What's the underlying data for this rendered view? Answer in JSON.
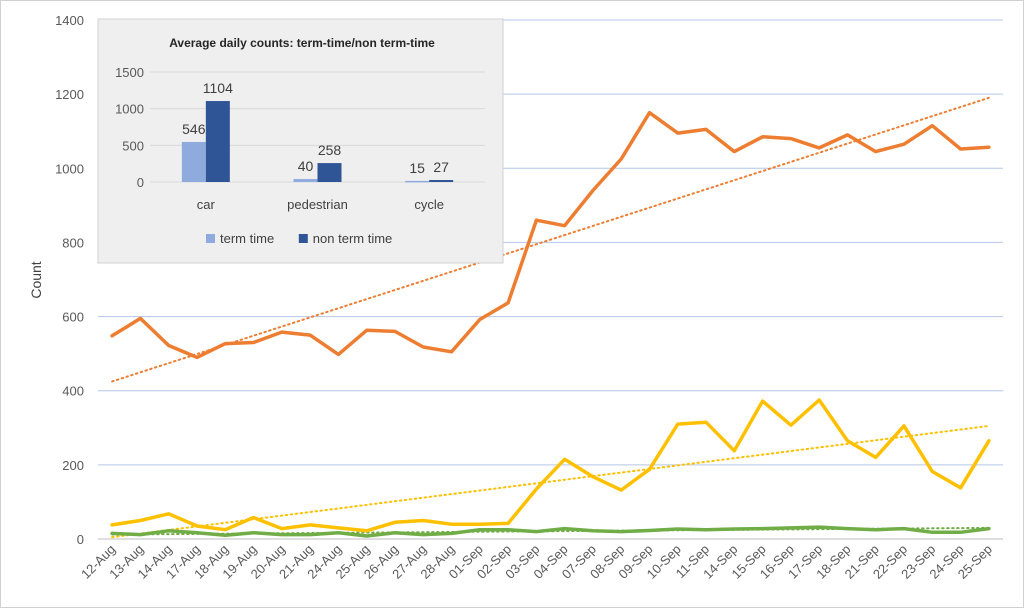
{
  "chart_data": [
    {
      "type": "line",
      "ylabel": "Count",
      "ylim": [
        0,
        1400
      ],
      "yticks": [
        0,
        200,
        400,
        600,
        800,
        1000,
        1200,
        1400
      ],
      "x": [
        "12-Aug",
        "13-Aug",
        "14-Aug",
        "17-Aug",
        "18-Aug",
        "19-Aug",
        "20-Aug",
        "21-Aug",
        "24-Aug",
        "25-Aug",
        "26-Aug",
        "27-Aug",
        "28-Aug",
        "01-Sep",
        "02-Sep",
        "03-Sep",
        "04-Sep",
        "07-Sep",
        "08-Sep",
        "09-Sep",
        "10-Sep",
        "11-Sep",
        "14-Sep",
        "15-Sep",
        "16-Sep",
        "17-Sep",
        "18-Sep",
        "21-Sep",
        "22-Sep",
        "23-Sep",
        "24-Sep",
        "25-Sep"
      ],
      "grid": true,
      "series": [
        {
          "color": "#ED7D31",
          "trendline": {
            "type": "linear",
            "start": 425,
            "end": 1190
          },
          "values": [
            548,
            595,
            522,
            490,
            527,
            530,
            558,
            550,
            498,
            563,
            560,
            518,
            505,
            592,
            637,
            860,
            845,
            940,
            1025,
            1150,
            1095,
            1105,
            1045,
            1085,
            1080,
            1055,
            1090,
            1045,
            1065,
            1115,
            1052,
            1057
          ]
        },
        {
          "color": "#FFC000",
          "trendline": {
            "type": "linear",
            "start": 5,
            "end": 305
          },
          "values": [
            38,
            50,
            68,
            35,
            25,
            58,
            28,
            38,
            30,
            22,
            45,
            50,
            40,
            40,
            42,
            135,
            215,
            168,
            132,
            188,
            310,
            315,
            238,
            372,
            307,
            375,
            265,
            220,
            305,
            182,
            138,
            265
          ]
        },
        {
          "color": "#70AD47",
          "trendline": {
            "type": "linear",
            "start": 12,
            "end": 30
          },
          "values": [
            15,
            12,
            22,
            17,
            10,
            17,
            12,
            12,
            17,
            8,
            17,
            12,
            15,
            25,
            25,
            20,
            28,
            22,
            20,
            23,
            27,
            25,
            27,
            28,
            30,
            32,
            28,
            25,
            28,
            18,
            18,
            28
          ]
        }
      ]
    },
    {
      "type": "bar",
      "title": "Average daily counts: term-time/non term-time",
      "categories": [
        "car",
        "pedestrian",
        "cycle"
      ],
      "ylim": [
        0,
        1500
      ],
      "yticks": [
        0,
        500,
        1000,
        1500
      ],
      "legend": "bottom",
      "series": [
        {
          "name": "term time",
          "color": "#8FAADC",
          "values": [
            546,
            40,
            15
          ]
        },
        {
          "name": "non term time",
          "color": "#2F5597",
          "values": [
            1104,
            258,
            27
          ]
        }
      ]
    }
  ]
}
